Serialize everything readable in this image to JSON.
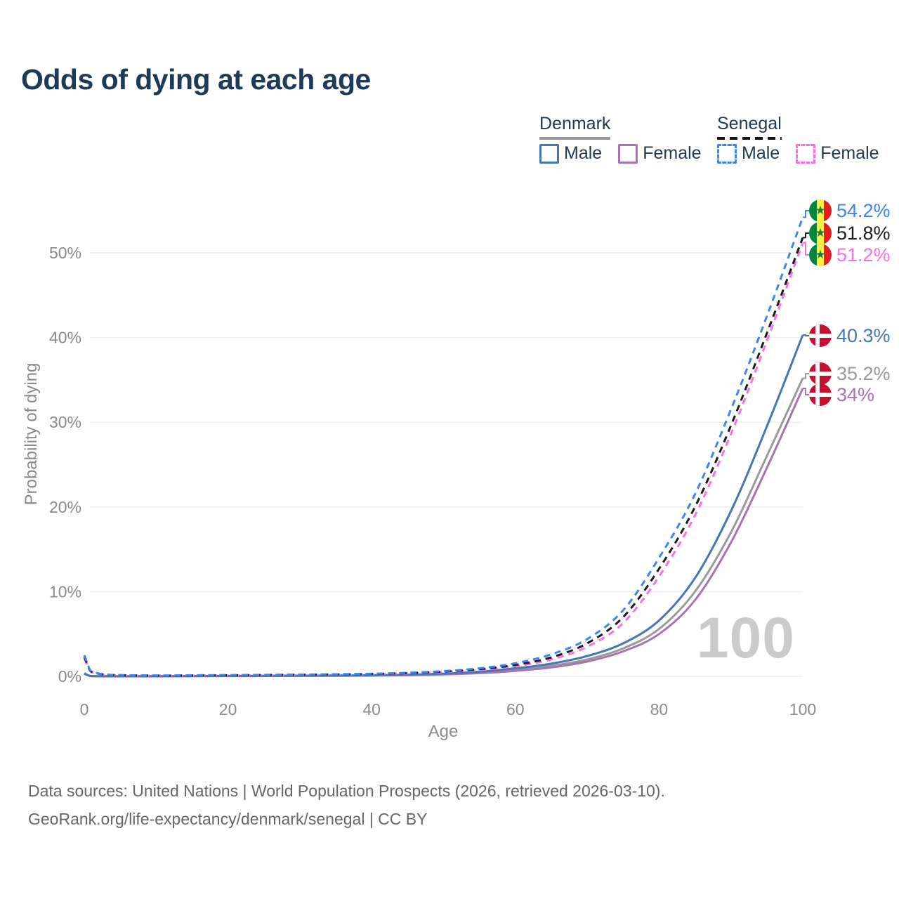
{
  "title": "Odds of dying at each age",
  "legend": {
    "denmark": {
      "label": "Denmark",
      "male": "Male",
      "female": "Female"
    },
    "senegal": {
      "label": "Senegal",
      "male": "Male",
      "female": "Female"
    }
  },
  "footer": {
    "line1": "Data sources: United Nations | World Population Prospects (2026, retrieved 2026-03-10).",
    "line2": "GeoRank.org/life-expectancy/denmark/senegal | CC BY"
  },
  "colors": {
    "title_text": "#1d3a5a",
    "legend_text": "#223a55",
    "axis_text": "#8a8a8a",
    "gridline": "#ececec",
    "watermark": "#cbcbcb",
    "footer_text": "#666666",
    "denmark_flag_red": "#c8102e",
    "senegal_green": "#00853f",
    "senegal_yellow": "#fdef42",
    "senegal_red": "#e31b23"
  },
  "chart_data": {
    "type": "line",
    "title": "Odds of dying at each age",
    "xlabel": "Age",
    "ylabel": "Probability of dying",
    "xlim": [
      0,
      100
    ],
    "ylim": [
      0,
      56
    ],
    "grid": "horizontal",
    "legend_position": "top-right",
    "hover_age_label": "100",
    "x_ticks": [
      {
        "v": 0,
        "label": "0"
      },
      {
        "v": 20,
        "label": "20"
      },
      {
        "v": 40,
        "label": "40"
      },
      {
        "v": 60,
        "label": "60"
      },
      {
        "v": 80,
        "label": "80"
      },
      {
        "v": 100,
        "label": "100"
      }
    ],
    "y_ticks": [
      {
        "v": 0,
        "label": "0%"
      },
      {
        "v": 10,
        "label": "10%"
      },
      {
        "v": 20,
        "label": "20%"
      },
      {
        "v": 30,
        "label": "30%"
      },
      {
        "v": 40,
        "label": "40%"
      },
      {
        "v": 50,
        "label": "50%"
      }
    ],
    "ages": [
      0,
      1,
      5,
      10,
      15,
      20,
      25,
      30,
      35,
      40,
      45,
      50,
      55,
      60,
      65,
      70,
      75,
      80,
      85,
      90,
      95,
      100
    ],
    "series": [
      {
        "key": "dk_both",
        "name": "Denmark Both sexes",
        "country": "Denmark",
        "sex": "Both",
        "color": "#9a9a9a",
        "dashed": false,
        "end_label": "35.2%",
        "values": [
          0.3,
          0.03,
          0.01,
          0.01,
          0.02,
          0.04,
          0.05,
          0.06,
          0.08,
          0.11,
          0.17,
          0.27,
          0.45,
          0.78,
          1.25,
          2.0,
          3.3,
          5.6,
          10.0,
          17.0,
          26.0,
          35.2
        ]
      },
      {
        "key": "dk_female",
        "name": "Denmark Female",
        "country": "Denmark",
        "sex": "Female",
        "color": "#a873b2",
        "dashed": false,
        "end_label": "34%",
        "values": [
          0.28,
          0.02,
          0.01,
          0.01,
          0.02,
          0.03,
          0.04,
          0.05,
          0.07,
          0.09,
          0.14,
          0.23,
          0.38,
          0.65,
          1.05,
          1.75,
          2.95,
          5.0,
          9.0,
          15.8,
          24.6,
          34.0
        ]
      },
      {
        "key": "dk_male",
        "name": "Denmark Male",
        "country": "Denmark",
        "sex": "Male",
        "color": "#4477b3",
        "dashed": false,
        "end_label": "40.3%",
        "values": [
          0.35,
          0.03,
          0.01,
          0.01,
          0.03,
          0.06,
          0.07,
          0.08,
          0.1,
          0.13,
          0.2,
          0.32,
          0.55,
          0.95,
          1.5,
          2.4,
          3.9,
          6.6,
          11.6,
          19.5,
          29.5,
          40.3
        ]
      },
      {
        "key": "sn_female",
        "name": "Senegal Female",
        "country": "Senegal",
        "sex": "Female",
        "color": "#fb6ee6",
        "dashed": true,
        "end_label": "51.2%",
        "values": [
          2.1,
          0.5,
          0.13,
          0.08,
          0.1,
          0.12,
          0.14,
          0.17,
          0.2,
          0.25,
          0.34,
          0.5,
          0.75,
          1.2,
          2.0,
          3.5,
          6.3,
          11.8,
          19.0,
          28.6,
          39.6,
          51.2
        ]
      },
      {
        "key": "sn_both",
        "name": "Senegal Both sexes",
        "country": "Senegal",
        "sex": "Both",
        "color": "#1c1c1c",
        "dashed": true,
        "end_label": "51.8%",
        "values": [
          2.3,
          0.55,
          0.14,
          0.09,
          0.11,
          0.13,
          0.16,
          0.19,
          0.22,
          0.28,
          0.38,
          0.56,
          0.85,
          1.35,
          2.25,
          3.9,
          7.0,
          12.7,
          20.0,
          29.6,
          40.5,
          51.8
        ]
      },
      {
        "key": "sn_male",
        "name": "Senegal Male",
        "country": "Senegal",
        "sex": "Male",
        "color": "#3d85f0",
        "dashed": true,
        "end_label": "54.2%",
        "values": [
          2.5,
          0.6,
          0.15,
          0.1,
          0.13,
          0.16,
          0.18,
          0.21,
          0.25,
          0.31,
          0.42,
          0.62,
          0.95,
          1.55,
          2.6,
          4.4,
          7.8,
          14.0,
          21.5,
          31.5,
          42.5,
          54.2
        ]
      }
    ]
  }
}
